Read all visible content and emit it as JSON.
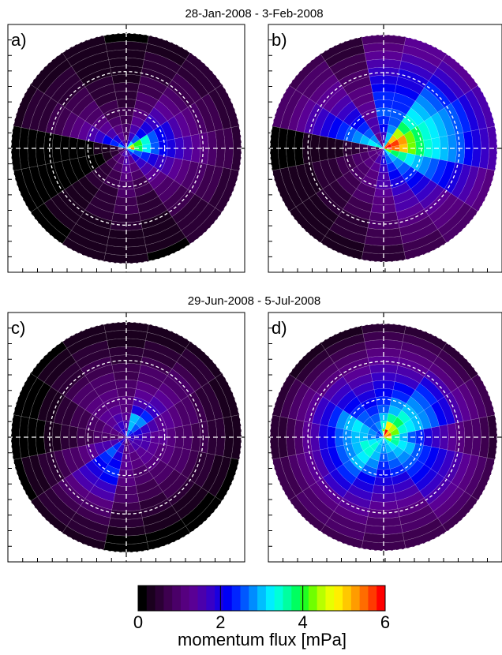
{
  "rows": [
    {
      "title": "28-Jan-2008 - 3-Feb-2008"
    },
    {
      "title": "29-Jun-2008 - 5-Jul-2008"
    }
  ],
  "chart_data": [
    {
      "type": "heatmap",
      "polar": true,
      "panel_label": "a)",
      "title": "28-Jan-2008 - 3-Feb-2008",
      "n_sectors": 16,
      "n_rings": 14,
      "sector_angles_deg": [
        0,
        22.5,
        45,
        67.5,
        90,
        112.5,
        135,
        157.5,
        180,
        202.5,
        225,
        247.5,
        270,
        292.5,
        315,
        337.5
      ],
      "values": [
        [
          5.2,
          3.8,
          3.2,
          2.5,
          2.2,
          2.0,
          1.8,
          1.5,
          1.3,
          1.1,
          0.9,
          0.8,
          0.7,
          0.6
        ],
        [
          4.5,
          4.0,
          3.5,
          2.6,
          2.2,
          1.9,
          1.6,
          1.3,
          1.1,
          0.9,
          0.8,
          0.7,
          0.6,
          0.6
        ],
        [
          3.2,
          2.5,
          2.2,
          1.9,
          1.7,
          1.5,
          1.3,
          1.1,
          0.9,
          0.8,
          0.7,
          0.6,
          0.5,
          0.5
        ],
        [
          2.0,
          1.8,
          1.6,
          1.4,
          1.2,
          1.0,
          0.9,
          0.8,
          0.7,
          0.6,
          0.5,
          0.5,
          0.4,
          0.4
        ],
        [
          1.2,
          1.0,
          0.9,
          0.8,
          0.7,
          0.6,
          0.5,
          0.5,
          0.4,
          0.4,
          0.3,
          0.3,
          0.3,
          0.2
        ],
        [
          1.5,
          1.3,
          1.1,
          0.9,
          0.8,
          0.7,
          0.6,
          0.5,
          0.5,
          0.4,
          0.4,
          0.3,
          0.3,
          0.3
        ],
        [
          2.2,
          1.9,
          1.6,
          1.4,
          1.2,
          1.0,
          0.9,
          0.8,
          0.7,
          0.6,
          0.5,
          0.5,
          0.4,
          0.4
        ],
        [
          2.8,
          2.4,
          2.1,
          1.8,
          1.5,
          1.3,
          1.1,
          0.9,
          0.8,
          0.7,
          0.6,
          0.5,
          0.5,
          0.4
        ],
        [
          1.0,
          0.6,
          0.4,
          0.3,
          0.2,
          0.2,
          0.1,
          0.1,
          0.1,
          0.1,
          0.1,
          0.0,
          0.0,
          0.0
        ],
        [
          0.8,
          0.5,
          0.3,
          0.2,
          0.2,
          0.1,
          0.1,
          0.1,
          0.1,
          0.0,
          0.0,
          0.0,
          0.0,
          0.0
        ],
        [
          1.2,
          0.9,
          0.7,
          0.6,
          0.5,
          0.5,
          0.4,
          0.4,
          0.4,
          0.3,
          0.3,
          0.3,
          0.2,
          0.2
        ],
        [
          1.5,
          1.1,
          0.9,
          0.8,
          0.7,
          0.6,
          0.5,
          0.5,
          0.5,
          0.4,
          0.4,
          0.4,
          0.3,
          0.3
        ],
        [
          1.8,
          1.5,
          1.3,
          1.1,
          1.0,
          0.9,
          0.8,
          0.7,
          0.6,
          0.5,
          0.4,
          0.4,
          0.3,
          0.3
        ],
        [
          1.6,
          1.3,
          1.1,
          0.9,
          0.8,
          0.7,
          0.6,
          0.5,
          0.5,
          0.4,
          0.3,
          0.3,
          0.3,
          0.2
        ],
        [
          2.4,
          2.0,
          1.8,
          1.6,
          1.4,
          1.2,
          1.0,
          0.9,
          0.8,
          0.7,
          0.6,
          0.6,
          0.5,
          0.5
        ],
        [
          3.0,
          2.6,
          2.3,
          2.0,
          1.8,
          1.6,
          1.4,
          1.2,
          1.0,
          0.9,
          0.8,
          0.7,
          0.6,
          0.5
        ]
      ]
    },
    {
      "type": "heatmap",
      "polar": true,
      "panel_label": "b)",
      "title": "28-Jan-2008 - 3-Feb-2008",
      "n_sectors": 16,
      "n_rings": 14,
      "sector_angles_deg": [
        0,
        22.5,
        45,
        67.5,
        90,
        112.5,
        135,
        157.5,
        180,
        202.5,
        225,
        247.5,
        270,
        292.5,
        315,
        337.5
      ],
      "values": [
        [
          5.8,
          5.5,
          5.0,
          4.2,
          3.8,
          3.5,
          3.2,
          3.0,
          2.7,
          2.5,
          2.2,
          2.0,
          1.8,
          1.5
        ],
        [
          6.0,
          5.6,
          5.2,
          4.3,
          3.8,
          3.5,
          3.3,
          3.0,
          2.8,
          2.5,
          2.3,
          2.0,
          1.8,
          1.6
        ],
        [
          5.5,
          5.0,
          4.5,
          3.8,
          3.5,
          3.3,
          3.0,
          2.8,
          2.5,
          2.3,
          2.0,
          1.8,
          1.6,
          1.4
        ],
        [
          3.0,
          3.0,
          2.8,
          2.6,
          2.5,
          2.4,
          2.3,
          2.2,
          2.0,
          1.9,
          1.8,
          1.6,
          1.4,
          1.3
        ],
        [
          1.5,
          1.8,
          2.2,
          2.4,
          2.5,
          2.4,
          2.3,
          2.1,
          2.0,
          1.8,
          1.6,
          1.4,
          1.2,
          1.0
        ],
        [
          1.3,
          1.4,
          1.5,
          1.5,
          1.4,
          1.3,
          1.2,
          1.1,
          1.0,
          0.9,
          0.8,
          0.7,
          0.6,
          0.5
        ],
        [
          2.8,
          2.7,
          2.6,
          2.4,
          2.2,
          2.0,
          1.8,
          1.6,
          1.4,
          1.3,
          1.1,
          1.0,
          0.9,
          0.8
        ],
        [
          3.5,
          3.2,
          3.0,
          2.8,
          2.6,
          2.3,
          2.1,
          1.9,
          1.7,
          1.5,
          1.3,
          1.2,
          1.0,
          0.9
        ],
        [
          0.8,
          1.0,
          0.8,
          0.6,
          0.5,
          0.4,
          0.4,
          0.3,
          0.3,
          0.3,
          0.2,
          0.2,
          0.2,
          0.2
        ],
        [
          1.2,
          1.1,
          1.0,
          0.9,
          0.8,
          0.7,
          0.6,
          0.5,
          0.5,
          0.4,
          0.4,
          0.4,
          0.3,
          0.3
        ],
        [
          1.4,
          1.2,
          1.1,
          1.0,
          0.9,
          0.8,
          0.7,
          0.6,
          0.6,
          0.5,
          0.4,
          0.4,
          0.3,
          0.3
        ],
        [
          1.6,
          1.5,
          1.4,
          1.2,
          1.1,
          1.0,
          0.9,
          0.8,
          0.7,
          0.6,
          0.5,
          0.5,
          0.4,
          0.4
        ],
        [
          2.0,
          1.9,
          1.8,
          1.6,
          1.5,
          1.3,
          1.2,
          1.1,
          1.0,
          0.9,
          0.8,
          0.7,
          0.6,
          0.5
        ],
        [
          2.6,
          2.5,
          2.3,
          2.2,
          2.0,
          1.8,
          1.6,
          1.5,
          1.3,
          1.2,
          1.0,
          0.9,
          0.8,
          0.7
        ],
        [
          3.2,
          3.0,
          2.8,
          2.6,
          2.4,
          2.2,
          2.0,
          1.8,
          1.6,
          1.4,
          1.2,
          1.1,
          1.0,
          0.9
        ],
        [
          4.2,
          3.8,
          3.6,
          3.3,
          3.0,
          2.8,
          2.6,
          2.4,
          2.2,
          2.0,
          1.8,
          1.6,
          1.4,
          1.2
        ]
      ]
    },
    {
      "type": "heatmap",
      "polar": true,
      "panel_label": "c)",
      "title": "29-Jun-2008 - 5-Jul-2008",
      "n_sectors": 16,
      "n_rings": 14,
      "sector_angles_deg": [
        0,
        22.5,
        45,
        67.5,
        90,
        112.5,
        135,
        157.5,
        180,
        202.5,
        225,
        247.5,
        270,
        292.5,
        315,
        337.5
      ],
      "values": [
        [
          1.8,
          1.7,
          1.6,
          1.4,
          1.3,
          1.2,
          1.0,
          0.9,
          0.8,
          0.7,
          0.6,
          0.5,
          0.4,
          0.3
        ],
        [
          2.0,
          1.9,
          1.8,
          1.6,
          1.4,
          1.3,
          1.1,
          1.0,
          0.9,
          0.8,
          0.6,
          0.5,
          0.4,
          0.3
        ],
        [
          2.4,
          2.6,
          2.8,
          2.3,
          1.8,
          1.6,
          1.4,
          1.2,
          1.0,
          0.9,
          0.7,
          0.6,
          0.5,
          0.4
        ],
        [
          2.8,
          3.0,
          2.9,
          2.0,
          1.6,
          1.4,
          1.2,
          1.0,
          0.9,
          0.8,
          0.6,
          0.5,
          0.4,
          0.3
        ],
        [
          1.6,
          1.6,
          1.4,
          1.2,
          1.1,
          1.0,
          0.9,
          0.8,
          0.7,
          0.6,
          0.5,
          0.4,
          0.3,
          0.3
        ],
        [
          2.0,
          1.8,
          1.6,
          1.4,
          1.2,
          1.1,
          1.0,
          0.9,
          0.8,
          0.7,
          0.6,
          0.5,
          0.4,
          0.3
        ],
        [
          1.5,
          1.5,
          1.4,
          1.3,
          1.2,
          1.1,
          1.0,
          0.9,
          0.8,
          0.6,
          0.5,
          0.4,
          0.3,
          0.2
        ],
        [
          1.2,
          1.2,
          1.1,
          1.0,
          0.9,
          0.8,
          0.7,
          0.6,
          0.5,
          0.4,
          0.3,
          0.2,
          0.1,
          0.1
        ],
        [
          1.0,
          1.0,
          1.0,
          0.9,
          0.8,
          0.7,
          0.6,
          0.5,
          0.4,
          0.3,
          0.2,
          0.1,
          0.1,
          0.1
        ],
        [
          1.4,
          1.5,
          1.6,
          1.5,
          1.4,
          1.2,
          1.0,
          0.9,
          0.7,
          0.6,
          0.5,
          0.4,
          0.3,
          0.2
        ],
        [
          2.0,
          2.4,
          2.6,
          2.4,
          2.2,
          2.0,
          1.8,
          1.5,
          1.2,
          1.0,
          0.8,
          0.6,
          0.5,
          0.4
        ],
        [
          1.5,
          1.8,
          2.0,
          2.2,
          2.3,
          2.1,
          1.8,
          1.5,
          1.2,
          1.0,
          0.8,
          0.6,
          0.5,
          0.4
        ],
        [
          1.0,
          1.2,
          1.3,
          1.3,
          1.2,
          1.1,
          1.0,
          0.9,
          0.7,
          0.6,
          0.5,
          0.3,
          0.2,
          0.2
        ],
        [
          1.2,
          1.3,
          1.2,
          1.1,
          1.0,
          0.9,
          0.8,
          0.7,
          0.6,
          0.5,
          0.4,
          0.3,
          0.2,
          0.2
        ],
        [
          1.6,
          1.5,
          1.4,
          1.3,
          1.2,
          1.0,
          0.9,
          0.8,
          0.7,
          0.5,
          0.4,
          0.3,
          0.2,
          0.2
        ],
        [
          1.8,
          1.6,
          1.5,
          1.3,
          1.2,
          1.1,
          1.0,
          0.9,
          0.7,
          0.6,
          0.5,
          0.4,
          0.3,
          0.2
        ]
      ]
    },
    {
      "type": "heatmap",
      "polar": true,
      "panel_label": "d)",
      "title": "29-Jun-2008 - 5-Jul-2008",
      "n_sectors": 16,
      "n_rings": 14,
      "sector_angles_deg": [
        0,
        22.5,
        45,
        67.5,
        90,
        112.5,
        135,
        157.5,
        180,
        202.5,
        225,
        247.5,
        270,
        292.5,
        315,
        337.5
      ],
      "values": [
        [
          4.8,
          3.6,
          3.0,
          2.6,
          2.3,
          2.0,
          1.8,
          1.6,
          1.4,
          1.2,
          1.0,
          0.9,
          0.7,
          0.6
        ],
        [
          5.4,
          4.2,
          3.4,
          3.2,
          3.0,
          2.8,
          2.5,
          2.2,
          1.9,
          1.6,
          1.4,
          1.2,
          1.0,
          0.8
        ],
        [
          5.0,
          4.4,
          3.8,
          3.4,
          3.0,
          2.8,
          2.6,
          2.4,
          2.0,
          1.6,
          1.2,
          1.0,
          0.8,
          0.6
        ],
        [
          5.8,
          4.8,
          3.6,
          3.0,
          2.7,
          2.4,
          2.1,
          1.8,
          1.5,
          1.3,
          1.1,
          0.9,
          0.8,
          0.6
        ],
        [
          4.2,
          3.4,
          3.0,
          2.6,
          2.3,
          2.1,
          1.9,
          1.7,
          1.5,
          1.3,
          1.1,
          0.9,
          0.7,
          0.5
        ],
        [
          3.0,
          2.8,
          2.6,
          2.4,
          2.2,
          2.0,
          1.8,
          1.6,
          1.4,
          1.2,
          1.0,
          0.8,
          0.6,
          0.4
        ],
        [
          2.4,
          2.5,
          2.6,
          2.5,
          2.4,
          2.2,
          2.0,
          1.8,
          1.5,
          1.2,
          1.0,
          0.8,
          0.6,
          0.4
        ],
        [
          2.6,
          2.8,
          3.0,
          3.2,
          3.0,
          2.7,
          2.4,
          2.0,
          1.7,
          1.4,
          1.1,
          0.9,
          0.7,
          0.5
        ],
        [
          2.5,
          2.8,
          3.0,
          3.0,
          2.8,
          2.5,
          2.2,
          1.9,
          1.6,
          1.3,
          1.0,
          0.8,
          0.6,
          0.5
        ],
        [
          3.0,
          3.2,
          3.4,
          3.1,
          2.8,
          2.5,
          2.2,
          1.9,
          1.6,
          1.3,
          1.1,
          0.9,
          0.8,
          0.7
        ],
        [
          3.2,
          3.4,
          3.5,
          3.3,
          3.0,
          2.6,
          2.3,
          2.0,
          1.7,
          1.4,
          1.2,
          1.0,
          0.9,
          0.8
        ],
        [
          3.0,
          3.1,
          3.0,
          2.8,
          2.5,
          2.2,
          1.9,
          1.7,
          1.5,
          1.3,
          1.1,
          1.0,
          0.9,
          0.8
        ],
        [
          2.8,
          2.7,
          2.6,
          2.4,
          2.2,
          2.0,
          1.8,
          1.6,
          1.4,
          1.2,
          1.0,
          0.9,
          0.8,
          0.7
        ],
        [
          3.0,
          2.9,
          2.7,
          2.5,
          2.3,
          2.0,
          1.8,
          1.6,
          1.4,
          1.2,
          1.0,
          0.9,
          0.8,
          0.7
        ],
        [
          3.4,
          3.2,
          3.0,
          2.8,
          2.6,
          2.4,
          2.2,
          2.0,
          1.8,
          1.6,
          1.4,
          1.2,
          1.0,
          0.8
        ],
        [
          4.2,
          3.6,
          3.2,
          2.9,
          2.6,
          2.4,
          2.2,
          2.0,
          1.7,
          1.5,
          1.3,
          1.1,
          0.9,
          0.7
        ]
      ]
    }
  ],
  "colorbar": {
    "label": "momentum flux [mPa]",
    "min": 0,
    "max": 6,
    "tick_values": [
      0,
      2,
      4,
      6
    ],
    "tick_labels": [
      "0",
      "2",
      "4",
      "6"
    ],
    "colors": [
      "#000000",
      "#1a001e",
      "#2b0035",
      "#3d004f",
      "#4a0068",
      "#56007f",
      "#5a0095",
      "#4b00ac",
      "#3800c6",
      "#1a00df",
      "#0000f5",
      "#0025ff",
      "#0058ff",
      "#008cff",
      "#00bfff",
      "#00eeff",
      "#00ffd8",
      "#00ffa0",
      "#00ff60",
      "#20ff20",
      "#70ff00",
      "#b8ff00",
      "#e8ff00",
      "#ffef00",
      "#ffc800",
      "#ff9c00",
      "#ff6c00",
      "#ff3a00",
      "#ff0000"
    ]
  }
}
